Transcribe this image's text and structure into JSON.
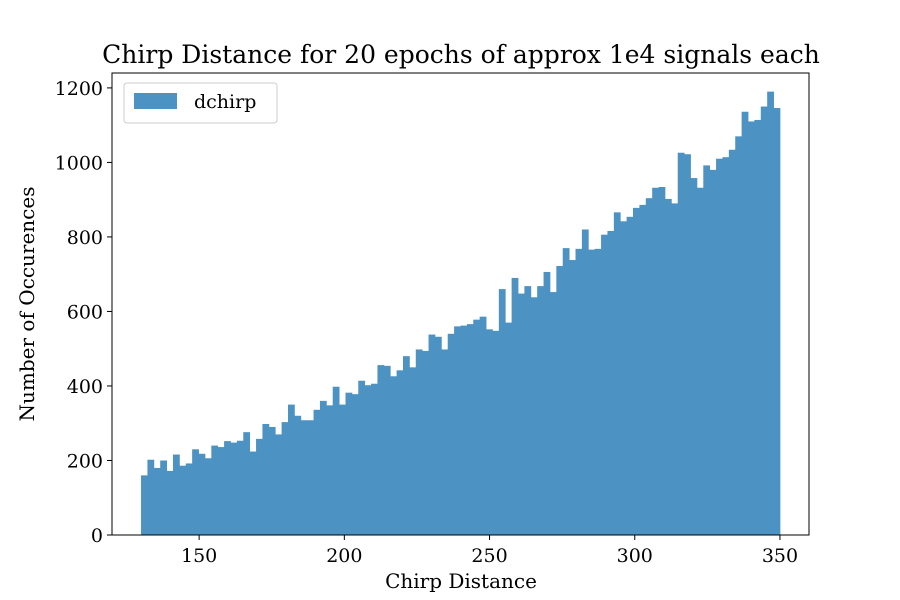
{
  "chart_data": {
    "type": "bar",
    "title": "Chirp Distance for 20 epochs of approx 1e4 signals each",
    "xlabel": "Chirp Distance",
    "ylabel": "Number of Occurences",
    "xlim": [
      120,
      360
    ],
    "ylim": [
      0,
      1240
    ],
    "xticks": [
      150,
      200,
      250,
      300,
      350
    ],
    "yticks": [
      0,
      200,
      400,
      600,
      800,
      1000,
      1200
    ],
    "grid": false,
    "legend": {
      "position": "top-left",
      "entries": [
        "dchirp"
      ]
    },
    "bin_range": [
      130,
      350
    ],
    "series": [
      {
        "name": "dchirp",
        "color": "#4c92c3",
        "values": [
          160,
          202,
          180,
          200,
          172,
          216,
          186,
          192,
          230,
          218,
          206,
          240,
          236,
          252,
          248,
          253,
          276,
          224,
          258,
          298,
          290,
          270,
          303,
          350,
          320,
          308,
          308,
          336,
          360,
          348,
          398,
          350,
          382,
          378,
          414,
          402,
          406,
          456,
          454,
          426,
          442,
          480,
          450,
          498,
          494,
          538,
          532,
          498,
          540,
          560,
          562,
          566,
          578,
          586,
          552,
          548,
          660,
          570,
          690,
          648,
          668,
          638,
          668,
          706,
          652,
          722,
          770,
          738,
          768,
          820,
          766,
          768,
          806,
          816,
          866,
          842,
          854,
          878,
          886,
          904,
          932,
          934,
          902,
          890,
          1026,
          1022,
          958,
          932,
          992,
          980,
          1010,
          1014,
          1034,
          1070,
          1136,
          1110,
          1114,
          1150,
          1190,
          1146
        ]
      }
    ]
  }
}
